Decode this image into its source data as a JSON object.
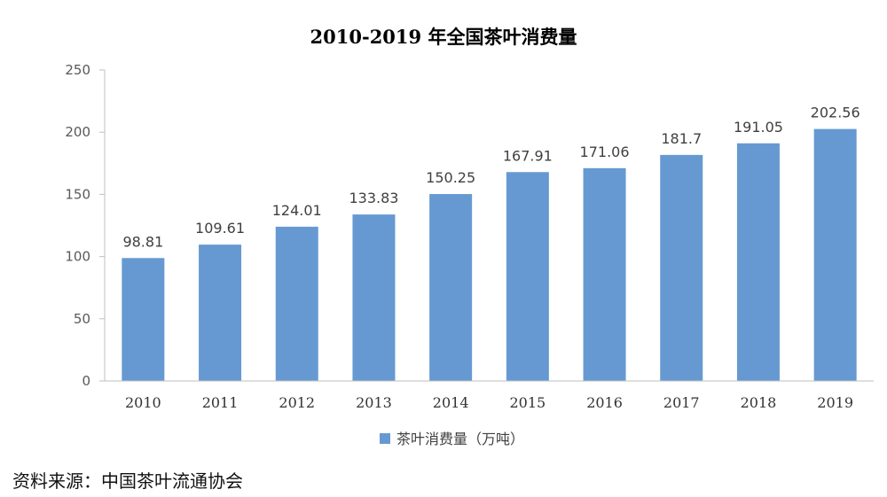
{
  "chart_data": {
    "type": "bar",
    "title": "2010-2019 年全国茶叶消费量",
    "categories": [
      "2010",
      "2011",
      "2012",
      "2013",
      "2014",
      "2015",
      "2016",
      "2017",
      "2018",
      "2019"
    ],
    "series": [
      {
        "name": "茶叶消费量（万吨）",
        "values": [
          98.81,
          109.61,
          124.01,
          133.83,
          150.25,
          167.91,
          171.06,
          181.7,
          191.05,
          202.56
        ],
        "labels": [
          "98.81",
          "109.61",
          "124.01",
          "133.83",
          "150.25",
          "167.91",
          "171.06",
          "181.7",
          "191.05",
          "202.56"
        ]
      }
    ],
    "ylim": [
      0,
      250
    ],
    "yticks": [
      0,
      50,
      100,
      150,
      200,
      250
    ],
    "grid": false,
    "legend_position": "bottom",
    "bar_color": "#6699D1"
  },
  "source_note": "资料来源：中国茶叶流通协会"
}
